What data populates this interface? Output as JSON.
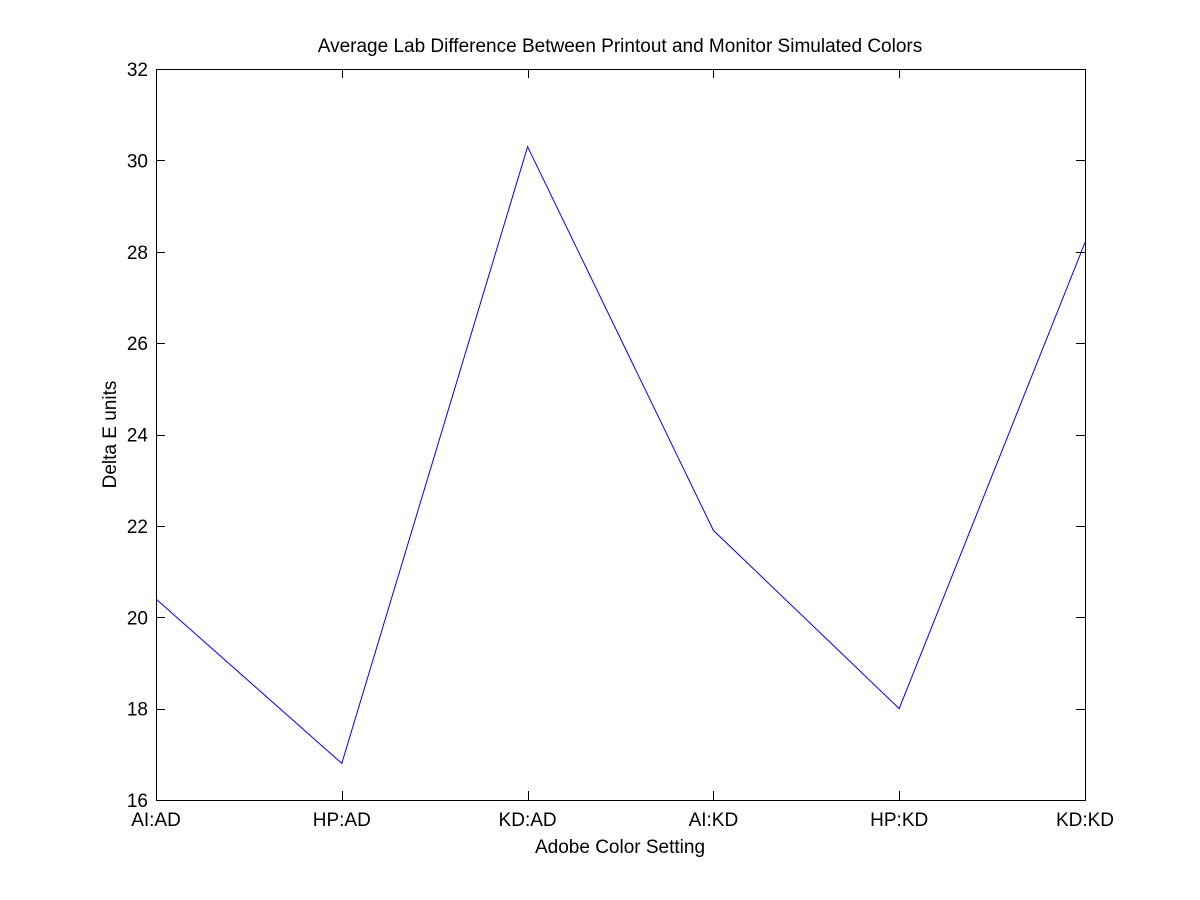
{
  "chart_data": {
    "type": "line",
    "title": "Average Lab Difference Between Printout and Monitor Simulated Colors",
    "xlabel": "Adobe Color Setting",
    "ylabel": "Delta E units",
    "categories": [
      "AI:AD",
      "HP:AD",
      "KD:AD",
      "AI:KD",
      "HP:KD",
      "KD:KD"
    ],
    "series": [
      {
        "values": [
          20.4,
          16.8,
          30.3,
          21.9,
          18.0,
          28.2
        ],
        "color": "#0000ff"
      }
    ],
    "ylim": [
      16,
      32
    ],
    "yticks": [
      "16",
      "18",
      "20",
      "22",
      "24",
      "26",
      "28",
      "30",
      "32"
    ],
    "grid": false,
    "box": true
  }
}
